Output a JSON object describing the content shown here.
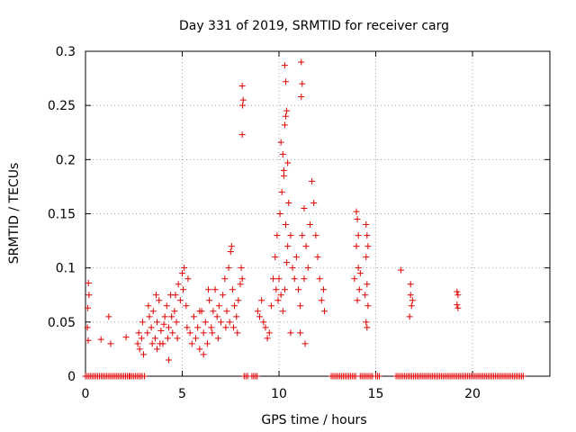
{
  "chart_data": {
    "type": "scatter",
    "title": "Day 331 of 2019, SRMTID for receiver carg",
    "xlabel": "GPS time / hours",
    "ylabel": "SRMTID / TECUs",
    "xlim": [
      0,
      24
    ],
    "ylim": [
      0,
      0.3
    ],
    "x_ticks": [
      0,
      5,
      10,
      15,
      20
    ],
    "y_ticks": [
      0,
      0.05,
      0.1,
      0.15,
      0.2,
      0.25,
      0.3
    ],
    "x_tick_labels": [
      "0",
      "5",
      "10",
      "15",
      "20"
    ],
    "y_tick_labels": [
      "0",
      "0.05",
      "0.1",
      "0.15",
      "0.2",
      "0.25",
      "0.3"
    ],
    "grid": true,
    "marker": "plus",
    "marker_color": "#e00000",
    "series": [
      {
        "name": "SRMTID",
        "points": [
          [
            0.15,
            0.086
          ],
          [
            0.18,
            0.075
          ],
          [
            0.12,
            0.063
          ],
          [
            0.1,
            0.045
          ],
          [
            0.14,
            0.033
          ],
          [
            0.8,
            0.034
          ],
          [
            1.2,
            0.055
          ],
          [
            1.3,
            0.03
          ],
          [
            2.1,
            0.036
          ],
          [
            2.7,
            0.03
          ],
          [
            2.8,
            0.025
          ],
          [
            2.75,
            0.04
          ],
          [
            2.9,
            0.035
          ],
          [
            2.95,
            0.05
          ],
          [
            3.0,
            0.02
          ],
          [
            3.2,
            0.04
          ],
          [
            3.3,
            0.055
          ],
          [
            3.4,
            0.045
          ],
          [
            3.5,
            0.06
          ],
          [
            3.6,
            0.035
          ],
          [
            3.7,
            0.05
          ],
          [
            3.8,
            0.07
          ],
          [
            3.9,
            0.042
          ],
          [
            4.0,
            0.03
          ],
          [
            4.1,
            0.055
          ],
          [
            4.2,
            0.065
          ],
          [
            4.3,
            0.045
          ],
          [
            4.4,
            0.075
          ],
          [
            4.5,
            0.04
          ],
          [
            4.6,
            0.06
          ],
          [
            4.7,
            0.05
          ],
          [
            4.8,
            0.085
          ],
          [
            4.9,
            0.07
          ],
          [
            5.0,
            0.095
          ],
          [
            5.05,
            0.08
          ],
          [
            5.1,
            0.1
          ],
          [
            5.2,
            0.065
          ],
          [
            5.3,
            0.09
          ],
          [
            3.25,
            0.065
          ],
          [
            3.45,
            0.03
          ],
          [
            3.65,
            0.075
          ],
          [
            3.85,
            0.03
          ],
          [
            4.05,
            0.048
          ],
          [
            4.25,
            0.035
          ],
          [
            4.45,
            0.055
          ],
          [
            4.65,
            0.075
          ],
          [
            4.3,
            0.015
          ],
          [
            3.7,
            0.025
          ],
          [
            4.75,
            0.035
          ],
          [
            5.25,
            0.045
          ],
          [
            5.4,
            0.04
          ],
          [
            5.5,
            0.03
          ],
          [
            5.6,
            0.055
          ],
          [
            5.7,
            0.035
          ],
          [
            5.8,
            0.045
          ],
          [
            5.9,
            0.025
          ],
          [
            6.0,
            0.06
          ],
          [
            6.1,
            0.04
          ],
          [
            6.2,
            0.05
          ],
          [
            6.3,
            0.03
          ],
          [
            6.4,
            0.07
          ],
          [
            6.5,
            0.045
          ],
          [
            6.6,
            0.06
          ],
          [
            6.7,
            0.08
          ],
          [
            6.8,
            0.055
          ],
          [
            6.9,
            0.065
          ],
          [
            7.0,
            0.05
          ],
          [
            7.1,
            0.075
          ],
          [
            7.2,
            0.09
          ],
          [
            7.3,
            0.06
          ],
          [
            7.4,
            0.1
          ],
          [
            7.5,
            0.115
          ],
          [
            7.55,
            0.12
          ],
          [
            7.6,
            0.08
          ],
          [
            7.7,
            0.065
          ],
          [
            7.8,
            0.055
          ],
          [
            7.9,
            0.07
          ],
          [
            8.0,
            0.085
          ],
          [
            8.05,
            0.1
          ],
          [
            8.1,
            0.09
          ],
          [
            7.65,
            0.045
          ],
          [
            7.85,
            0.04
          ],
          [
            6.1,
            0.02
          ],
          [
            5.9,
            0.06
          ],
          [
            6.35,
            0.08
          ],
          [
            6.55,
            0.04
          ],
          [
            6.85,
            0.035
          ],
          [
            7.25,
            0.045
          ],
          [
            7.45,
            0.05
          ],
          [
            8.1,
            0.268
          ],
          [
            8.15,
            0.255
          ],
          [
            8.12,
            0.25
          ],
          [
            8.1,
            0.223
          ],
          [
            8.9,
            0.06
          ],
          [
            9.0,
            0.055
          ],
          [
            9.1,
            0.07
          ],
          [
            9.2,
            0.05
          ],
          [
            9.3,
            0.045
          ],
          [
            9.4,
            0.035
          ],
          [
            9.5,
            0.04
          ],
          [
            9.6,
            0.065
          ],
          [
            9.7,
            0.09
          ],
          [
            9.8,
            0.11
          ],
          [
            9.9,
            0.13
          ],
          [
            10.0,
            0.09
          ],
          [
            10.1,
            0.075
          ],
          [
            10.2,
            0.06
          ],
          [
            10.3,
            0.08
          ],
          [
            10.4,
            0.105
          ],
          [
            9.85,
            0.08
          ],
          [
            9.95,
            0.07
          ],
          [
            10.05,
            0.15
          ],
          [
            10.15,
            0.17
          ],
          [
            10.25,
            0.19
          ],
          [
            10.35,
            0.14
          ],
          [
            10.45,
            0.12
          ],
          [
            10.1,
            0.216
          ],
          [
            10.2,
            0.205
          ],
          [
            10.25,
            0.185
          ],
          [
            10.35,
            0.24
          ],
          [
            10.4,
            0.245
          ],
          [
            10.3,
            0.232
          ],
          [
            10.45,
            0.197
          ],
          [
            10.3,
            0.287
          ],
          [
            10.35,
            0.272
          ],
          [
            10.5,
            0.16
          ],
          [
            10.6,
            0.13
          ],
          [
            10.7,
            0.1
          ],
          [
            10.8,
            0.09
          ],
          [
            10.9,
            0.11
          ],
          [
            11.0,
            0.08
          ],
          [
            11.1,
            0.065
          ],
          [
            11.2,
            0.13
          ],
          [
            11.3,
            0.155
          ],
          [
            11.15,
            0.29
          ],
          [
            11.2,
            0.27
          ],
          [
            11.15,
            0.258
          ],
          [
            11.4,
            0.12
          ],
          [
            11.5,
            0.1
          ],
          [
            11.6,
            0.14
          ],
          [
            11.7,
            0.18
          ],
          [
            11.8,
            0.16
          ],
          [
            11.9,
            0.13
          ],
          [
            12.0,
            0.11
          ],
          [
            12.1,
            0.09
          ],
          [
            12.2,
            0.07
          ],
          [
            12.3,
            0.08
          ],
          [
            12.35,
            0.06
          ],
          [
            11.3,
            0.09
          ],
          [
            11.1,
            0.04
          ],
          [
            11.35,
            0.03
          ],
          [
            10.6,
            0.04
          ],
          [
            14.0,
            0.152
          ],
          [
            14.05,
            0.145
          ],
          [
            14.1,
            0.13
          ],
          [
            14.0,
            0.12
          ],
          [
            14.1,
            0.1
          ],
          [
            14.2,
            0.095
          ],
          [
            14.15,
            0.08
          ],
          [
            13.9,
            0.09
          ],
          [
            14.05,
            0.07
          ],
          [
            14.5,
            0.14
          ],
          [
            14.55,
            0.13
          ],
          [
            14.6,
            0.12
          ],
          [
            14.5,
            0.11
          ],
          [
            14.55,
            0.085
          ],
          [
            14.6,
            0.065
          ],
          [
            14.5,
            0.05
          ],
          [
            14.55,
            0.045
          ],
          [
            14.45,
            0.075
          ],
          [
            16.3,
            0.098
          ],
          [
            16.8,
            0.075
          ],
          [
            16.85,
            0.065
          ],
          [
            16.75,
            0.055
          ],
          [
            16.8,
            0.085
          ],
          [
            16.9,
            0.07
          ],
          [
            19.2,
            0.078
          ],
          [
            19.25,
            0.075
          ],
          [
            19.2,
            0.066
          ],
          [
            19.25,
            0.063
          ]
        ],
        "zero_segments": [
          [
            0.0,
            2.3
          ],
          [
            2.3,
            3.0
          ],
          [
            3.05,
            3.1
          ],
          [
            8.2,
            8.45
          ],
          [
            8.6,
            8.9
          ],
          [
            12.7,
            14.0
          ],
          [
            14.2,
            14.9
          ],
          [
            15.0,
            15.2
          ],
          [
            16.05,
            22.7
          ]
        ]
      }
    ]
  }
}
